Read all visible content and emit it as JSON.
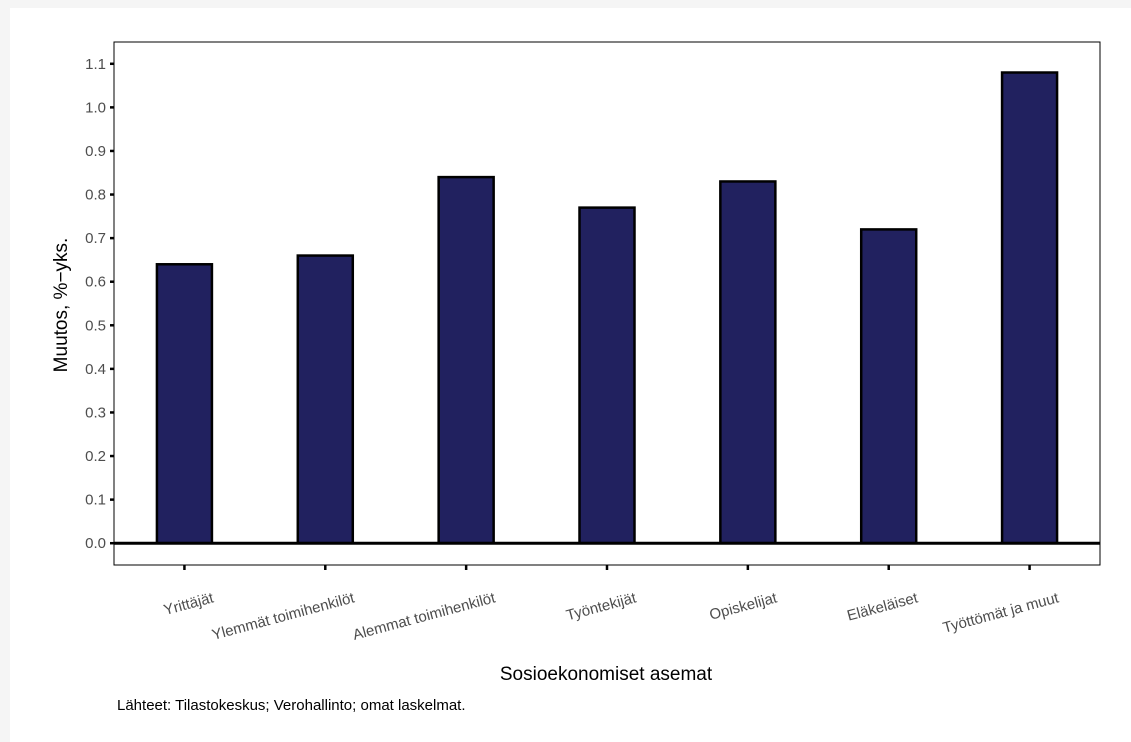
{
  "chart_data": {
    "type": "bar",
    "xlabel": "Sosioekonomiset asemat",
    "ylabel": "Muutos, %−yks.",
    "ylim": [
      -0.05,
      1.15
    ],
    "yticks": [
      "0.0",
      "0.1",
      "0.2",
      "0.3",
      "0.4",
      "0.5",
      "0.6",
      "0.7",
      "0.8",
      "0.9",
      "1.0",
      "1.1"
    ],
    "categories": [
      "Yrittäjät",
      "Ylemmät toimihenkilöt",
      "Alemmat toimihenkilöt",
      "Työntekijät",
      "Opiskelijat",
      "Eläkeläiset",
      "Työttömät ja muut"
    ],
    "values": [
      0.64,
      0.66,
      0.84,
      0.77,
      0.83,
      0.72,
      1.08
    ],
    "bar_color": "#21215f",
    "grid": false,
    "legend": "none"
  },
  "caption": "Lähteet: Tilastokeskus; Verohallinto; omat laskelmat."
}
